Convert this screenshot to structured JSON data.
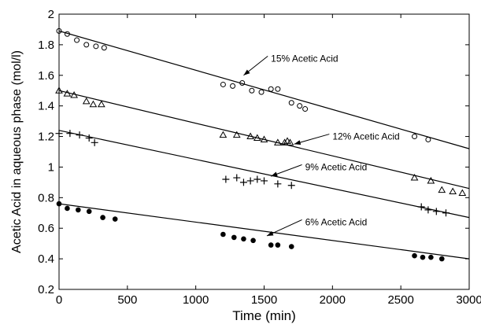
{
  "chart_data": {
    "type": "scatter",
    "title": "",
    "xlabel": "Time (min)",
    "ylabel": "Acetic Acid in aqueous phase (mol/l)",
    "xlim": [
      0,
      3000
    ],
    "ylim": [
      0.2,
      2.0
    ],
    "xticks": [
      0,
      500,
      1000,
      1500,
      2000,
      2500,
      3000
    ],
    "yticks": [
      0.2,
      0.4,
      0.6,
      0.8,
      1.0,
      1.2,
      1.4,
      1.6,
      1.8,
      2.0
    ],
    "ytick_labels": [
      "0.2",
      "0.4",
      "0.6",
      "0.8",
      "1",
      "1.2",
      "1.4",
      "1.6",
      "1.8",
      "2"
    ],
    "grid": false,
    "legend": "none",
    "series": [
      {
        "name": "15% Acetic Acid",
        "marker": "circle-open",
        "fit_line": [
          [
            0,
            1.89
          ],
          [
            3000,
            1.12
          ]
        ],
        "points": [
          [
            0,
            1.89
          ],
          [
            60,
            1.87
          ],
          [
            130,
            1.83
          ],
          [
            200,
            1.8
          ],
          [
            270,
            1.79
          ],
          [
            330,
            1.78
          ],
          [
            1200,
            1.54
          ],
          [
            1270,
            1.53
          ],
          [
            1340,
            1.55
          ],
          [
            1410,
            1.5
          ],
          [
            1480,
            1.49
          ],
          [
            1550,
            1.51
          ],
          [
            1600,
            1.51
          ],
          [
            1700,
            1.42
          ],
          [
            1760,
            1.4
          ],
          [
            1800,
            1.38
          ],
          [
            2600,
            1.2
          ],
          [
            2700,
            1.18
          ]
        ]
      },
      {
        "name": "12% Acetic Acid",
        "marker": "triangle-open",
        "fit_line": [
          [
            0,
            1.5
          ],
          [
            3000,
            0.86
          ]
        ],
        "points": [
          [
            0,
            1.5
          ],
          [
            60,
            1.48
          ],
          [
            110,
            1.47
          ],
          [
            200,
            1.43
          ],
          [
            250,
            1.41
          ],
          [
            310,
            1.41
          ],
          [
            1200,
            1.21
          ],
          [
            1300,
            1.21
          ],
          [
            1400,
            1.2
          ],
          [
            1450,
            1.19
          ],
          [
            1500,
            1.18
          ],
          [
            1600,
            1.16
          ],
          [
            1650,
            1.16
          ],
          [
            1670,
            1.17
          ],
          [
            1690,
            1.16
          ],
          [
            2600,
            0.93
          ],
          [
            2720,
            0.91
          ],
          [
            2800,
            0.85
          ],
          [
            2880,
            0.84
          ],
          [
            2950,
            0.83
          ]
        ]
      },
      {
        "name": "9% Acetic Acid",
        "marker": "plus",
        "fit_line": [
          [
            0,
            1.24
          ],
          [
            3000,
            0.67
          ]
        ],
        "points": [
          [
            0,
            1.22
          ],
          [
            80,
            1.22
          ],
          [
            150,
            1.21
          ],
          [
            220,
            1.19
          ],
          [
            260,
            1.16
          ],
          [
            1220,
            0.92
          ],
          [
            1300,
            0.93
          ],
          [
            1350,
            0.9
          ],
          [
            1400,
            0.91
          ],
          [
            1450,
            0.92
          ],
          [
            1500,
            0.91
          ],
          [
            1600,
            0.89
          ],
          [
            1700,
            0.88
          ],
          [
            2650,
            0.74
          ],
          [
            2700,
            0.72
          ],
          [
            2760,
            0.71
          ],
          [
            2830,
            0.7
          ]
        ]
      },
      {
        "name": "6% Acetic Acid",
        "marker": "circle-filled",
        "fit_line": [
          [
            0,
            0.76
          ],
          [
            3000,
            0.4
          ]
        ],
        "points": [
          [
            0,
            0.76
          ],
          [
            60,
            0.73
          ],
          [
            140,
            0.72
          ],
          [
            220,
            0.71
          ],
          [
            320,
            0.67
          ],
          [
            410,
            0.66
          ],
          [
            1200,
            0.56
          ],
          [
            1280,
            0.54
          ],
          [
            1350,
            0.53
          ],
          [
            1420,
            0.52
          ],
          [
            1550,
            0.49
          ],
          [
            1600,
            0.49
          ],
          [
            1700,
            0.48
          ],
          [
            2600,
            0.42
          ],
          [
            2660,
            0.41
          ],
          [
            2720,
            0.41
          ],
          [
            2800,
            0.4
          ]
        ]
      }
    ],
    "annotations": [
      {
        "text": "15% Acetic Acid",
        "text_at": [
          1550,
          1.71
        ],
        "arrow_to": [
          1350,
          1.6
        ]
      },
      {
        "text": "12% Acetic Acid",
        "text_at": [
          2000,
          1.2
        ],
        "arrow_to": [
          1720,
          1.15
        ]
      },
      {
        "text": "9% Acetic Acid",
        "text_at": [
          1800,
          1.0
        ],
        "arrow_to": [
          1550,
          0.94
        ]
      },
      {
        "text": "6% Acetic Acid",
        "text_at": [
          1800,
          0.64
        ],
        "arrow_to": [
          1520,
          0.55
        ]
      }
    ]
  }
}
